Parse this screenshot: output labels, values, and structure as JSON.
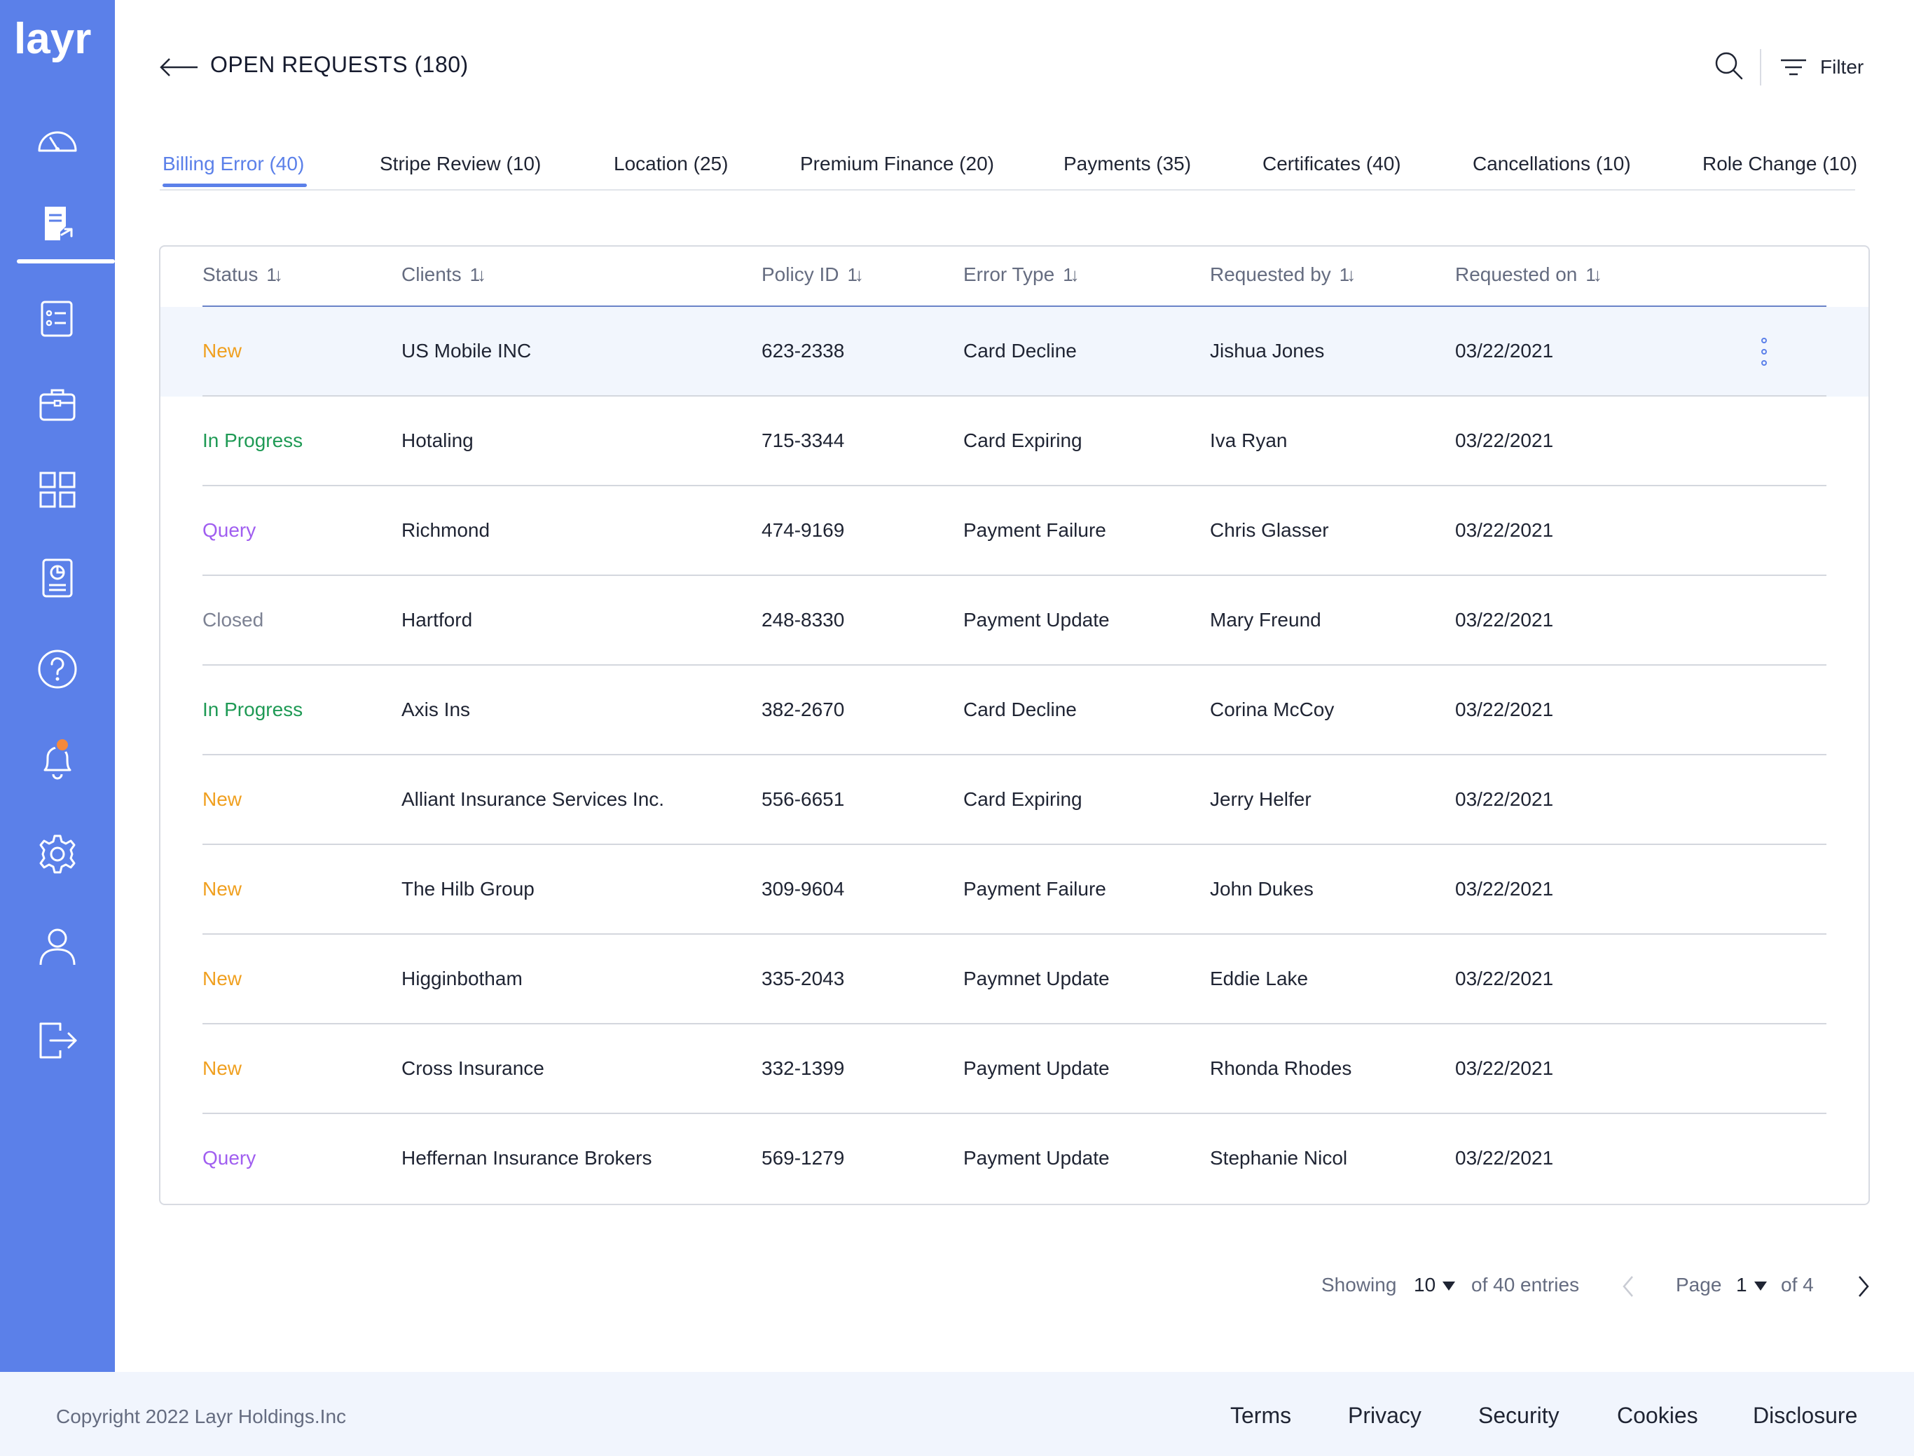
{
  "brand": {
    "logo_text": "layr"
  },
  "sidebar": {
    "items": [
      {
        "icon": "dashboard-gauge-icon"
      },
      {
        "icon": "requests-document-icon",
        "active": true
      },
      {
        "icon": "checklist-icon"
      },
      {
        "icon": "briefcase-icon"
      },
      {
        "icon": "grid-apps-icon"
      },
      {
        "icon": "report-chart-icon"
      },
      {
        "icon": "help-icon"
      },
      {
        "icon": "bell-icon",
        "badge": true
      },
      {
        "icon": "gear-icon"
      },
      {
        "icon": "user-icon"
      },
      {
        "icon": "logout-icon"
      }
    ],
    "accent": "#5b80e9",
    "badge_color": "#f5893b"
  },
  "header": {
    "title": "OPEN REQUESTS (180)",
    "filter_label": "Filter"
  },
  "tabs": [
    {
      "label": "Billing Error (40)",
      "active": true
    },
    {
      "label": "Stripe Review (10)"
    },
    {
      "label": "Location (25)"
    },
    {
      "label": "Premium Finance (20)"
    },
    {
      "label": "Payments (35)"
    },
    {
      "label": "Certificates (40)"
    },
    {
      "label": "Cancellations (10)"
    },
    {
      "label": "Role Change (10)"
    }
  ],
  "table": {
    "columns": [
      "Status",
      "Clients",
      "Policy ID",
      "Error Type",
      "Requested by",
      "Requested on"
    ],
    "sort_glyph": "1↓",
    "status_colors": {
      "New": "#f0a020",
      "In Progress": "#1f9a55",
      "Query": "#a05ef0",
      "Closed": "#7d8293"
    },
    "rows": [
      {
        "status": "New",
        "client": "US Mobile INC",
        "policy": "623-2338",
        "error": "Card Decline",
        "by": "Jishua Jones",
        "on": "03/22/2021"
      },
      {
        "status": "In Progress",
        "client": "Hotaling",
        "policy": "715-3344",
        "error": "Card Expiring",
        "by": "Iva Ryan",
        "on": "03/22/2021"
      },
      {
        "status": "Query",
        "client": "Richmond",
        "policy": "474-9169",
        "error": "Payment Failure",
        "by": "Chris Glasser",
        "on": "03/22/2021"
      },
      {
        "status": "Closed",
        "client": "Hartford",
        "policy": "248-8330",
        "error": "Payment Update",
        "by": "Mary Freund",
        "on": "03/22/2021"
      },
      {
        "status": "In Progress",
        "client": "Axis Ins",
        "policy": "382-2670",
        "error": "Card Decline",
        "by": "Corina McCoy",
        "on": "03/22/2021"
      },
      {
        "status": "New",
        "client": "Alliant Insurance Services Inc.",
        "policy": "556-6651",
        "error": "Card Expiring",
        "by": "Jerry Helfer",
        "on": "03/22/2021"
      },
      {
        "status": "New",
        "client": "The Hilb Group",
        "policy": "309-9604",
        "error": "Payment Failure",
        "by": "John Dukes",
        "on": "03/22/2021"
      },
      {
        "status": "New",
        "client": "Higginbotham",
        "policy": "335-2043",
        "error": "Paymnet Update",
        "by": "Eddie Lake",
        "on": "03/22/2021"
      },
      {
        "status": "New",
        "client": "Cross Insurance",
        "policy": "332-1399",
        "error": "Payment Update",
        "by": "Rhonda Rhodes",
        "on": "03/22/2021"
      },
      {
        "status": "Query",
        "client": "Heffernan Insurance Brokers",
        "policy": "569-1279",
        "error": "Payment Update",
        "by": "Stephanie Nicol",
        "on": "03/22/2021"
      }
    ]
  },
  "pagination": {
    "showing_label": "Showing",
    "page_size": "10",
    "of_entries": "of 40 entries",
    "page_label": "Page",
    "current_page": "1",
    "of_pages": "of 4"
  },
  "footer": {
    "copyright": "Copyright 2022 Layr Holdings.Inc",
    "links": [
      "Terms",
      "Privacy",
      "Security",
      "Cookies",
      "Disclosure"
    ]
  }
}
